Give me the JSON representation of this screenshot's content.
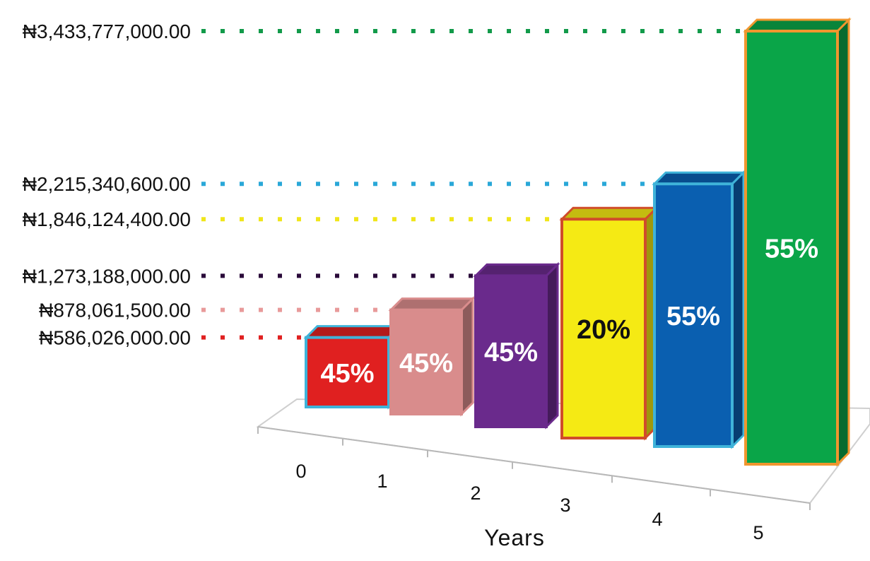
{
  "chart_data": {
    "type": "bar",
    "xlabel": "Years",
    "ylabel": "",
    "currency_symbol": "₦",
    "categories": [
      "0",
      "1",
      "2",
      "3",
      "4",
      "5"
    ],
    "values": [
      586026000.0,
      878061500.0,
      1273188000.0,
      1846124400.0,
      2215340600.0,
      3433777000.0
    ],
    "value_labels": [
      "₦586,026,000.00",
      "₦878,061,500.00",
      "₦1,273,188,000.00",
      "₦1,846,124,400.00",
      "₦2,215,340,600.00",
      "₦3,433,777,000.00"
    ],
    "percent_labels": [
      "45%",
      "45%",
      "45%",
      "20%",
      "55%",
      "55%"
    ],
    "bar_colors": [
      "#e02020",
      "#d98c8c",
      "#6a2a8c",
      "#f5ea14",
      "#0a5fb0",
      "#0aa548"
    ],
    "bar_border_colors": [
      "#3fb3d9",
      "#d98c8c",
      "#6a2a8c",
      "#d04c2a",
      "#3fb3d9",
      "#f0962e"
    ],
    "leader_colors": [
      "#e02020",
      "#e89a9a",
      "#2a0a3a",
      "#f0e61a",
      "#2aa8d8",
      "#129a4a"
    ],
    "percent_label_colors": [
      "#ffffff",
      "#ffffff",
      "#ffffff",
      "#111111",
      "#ffffff",
      "#ffffff"
    ],
    "grid": false,
    "style": "3d-columns"
  }
}
